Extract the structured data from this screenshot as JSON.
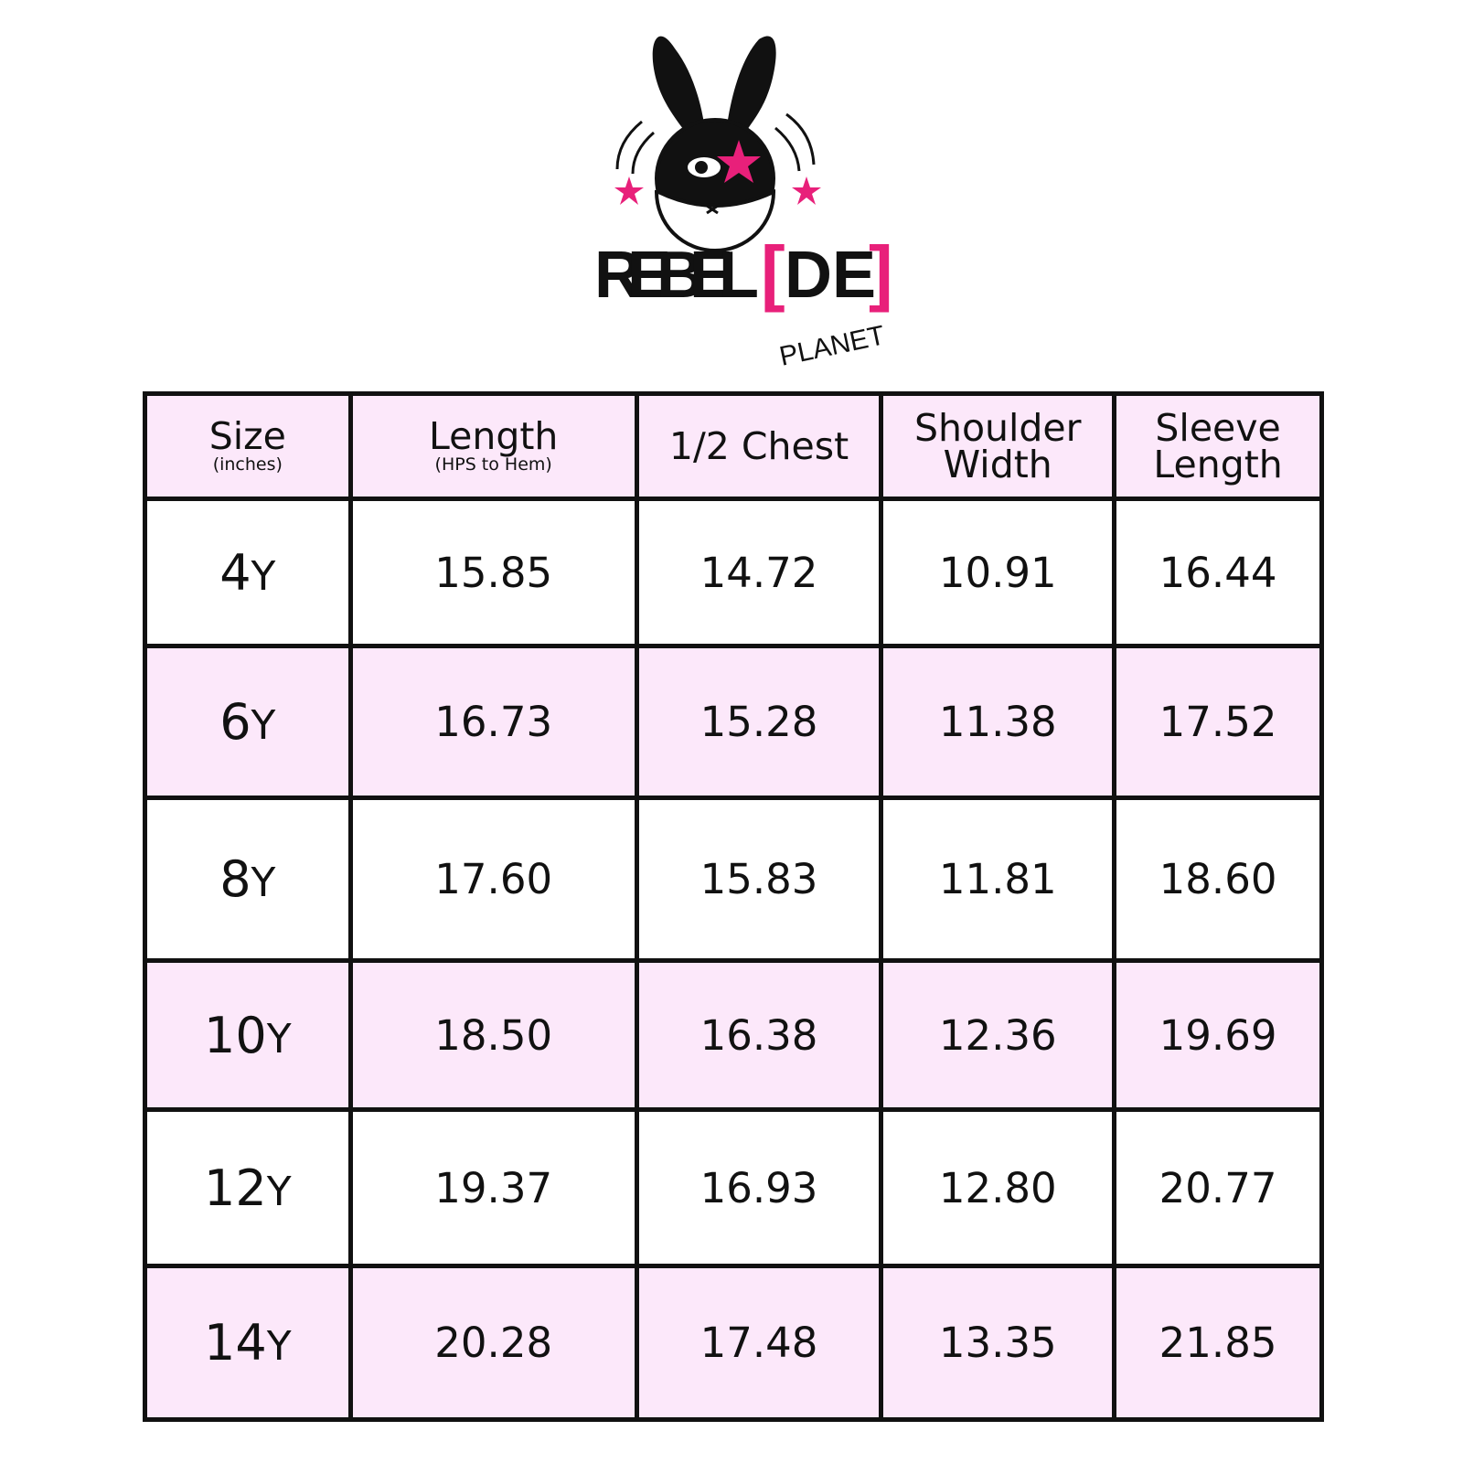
{
  "logo": {
    "brand": "REBEL[DE]",
    "sub": "PLANET",
    "colors": {
      "pink": "#e8207a",
      "black": "#111111"
    }
  },
  "table": {
    "header_bg": "#fce8fa",
    "headers": [
      {
        "label": "Size",
        "sub": "(inches)"
      },
      {
        "label": "Length",
        "sub": "(HPS to Hem)"
      },
      {
        "label": "1/2 Chest",
        "sub": ""
      },
      {
        "label": "Shoulder Width",
        "sub": ""
      },
      {
        "label": "Sleeve Length",
        "sub": ""
      }
    ],
    "rows": [
      {
        "size_num": "4",
        "size_unit": "Y",
        "values": [
          "15.85",
          "14.72",
          "10.91",
          "16.44"
        ]
      },
      {
        "size_num": "6",
        "size_unit": "Y",
        "values": [
          "16.73",
          "15.28",
          "11.38",
          "17.52"
        ]
      },
      {
        "size_num": "8",
        "size_unit": "Y",
        "values": [
          "17.60",
          "15.83",
          "11.81",
          "18.60"
        ]
      },
      {
        "size_num": "10",
        "size_unit": "Y",
        "values": [
          "18.50",
          "16.38",
          "12.36",
          "19.69"
        ]
      },
      {
        "size_num": "12",
        "size_unit": "Y",
        "values": [
          "19.37",
          "16.93",
          "12.80",
          "20.77"
        ]
      },
      {
        "size_num": "14",
        "size_unit": "Y",
        "values": [
          "20.28",
          "17.48",
          "13.35",
          "21.85"
        ]
      }
    ]
  }
}
